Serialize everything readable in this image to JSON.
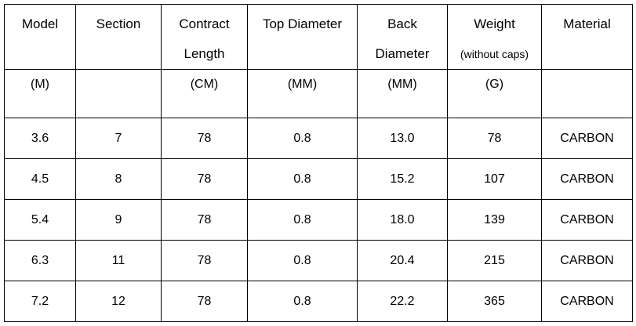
{
  "table": {
    "columns": [
      {
        "name": "Model",
        "name2": "",
        "unit": "(M)"
      },
      {
        "name": "Section",
        "name2": "",
        "unit": ""
      },
      {
        "name": "Contract",
        "name2": "Length",
        "unit": "(CM)"
      },
      {
        "name": "Top Diameter",
        "name2": "",
        "unit": "(MM)"
      },
      {
        "name": "Back",
        "name2": "Diameter",
        "unit": "(MM)"
      },
      {
        "name": "Weight",
        "name2": "(without caps)",
        "unit": "(G)"
      },
      {
        "name": "Material",
        "name2": "",
        "unit": ""
      }
    ],
    "rows": [
      [
        "3.6",
        "7",
        "78",
        "0.8",
        "13.0",
        "78",
        "CARBON"
      ],
      [
        "4.5",
        "8",
        "78",
        "0.8",
        "15.2",
        "107",
        "CARBON"
      ],
      [
        "5.4",
        "9",
        "78",
        "0.8",
        "18.0",
        "139",
        "CARBON"
      ],
      [
        "6.3",
        "11",
        "78",
        "0.8",
        "20.4",
        "215",
        "CARBON"
      ],
      [
        "7.2",
        "12",
        "78",
        "0.8",
        "22.2",
        "365",
        "CARBON"
      ]
    ]
  }
}
